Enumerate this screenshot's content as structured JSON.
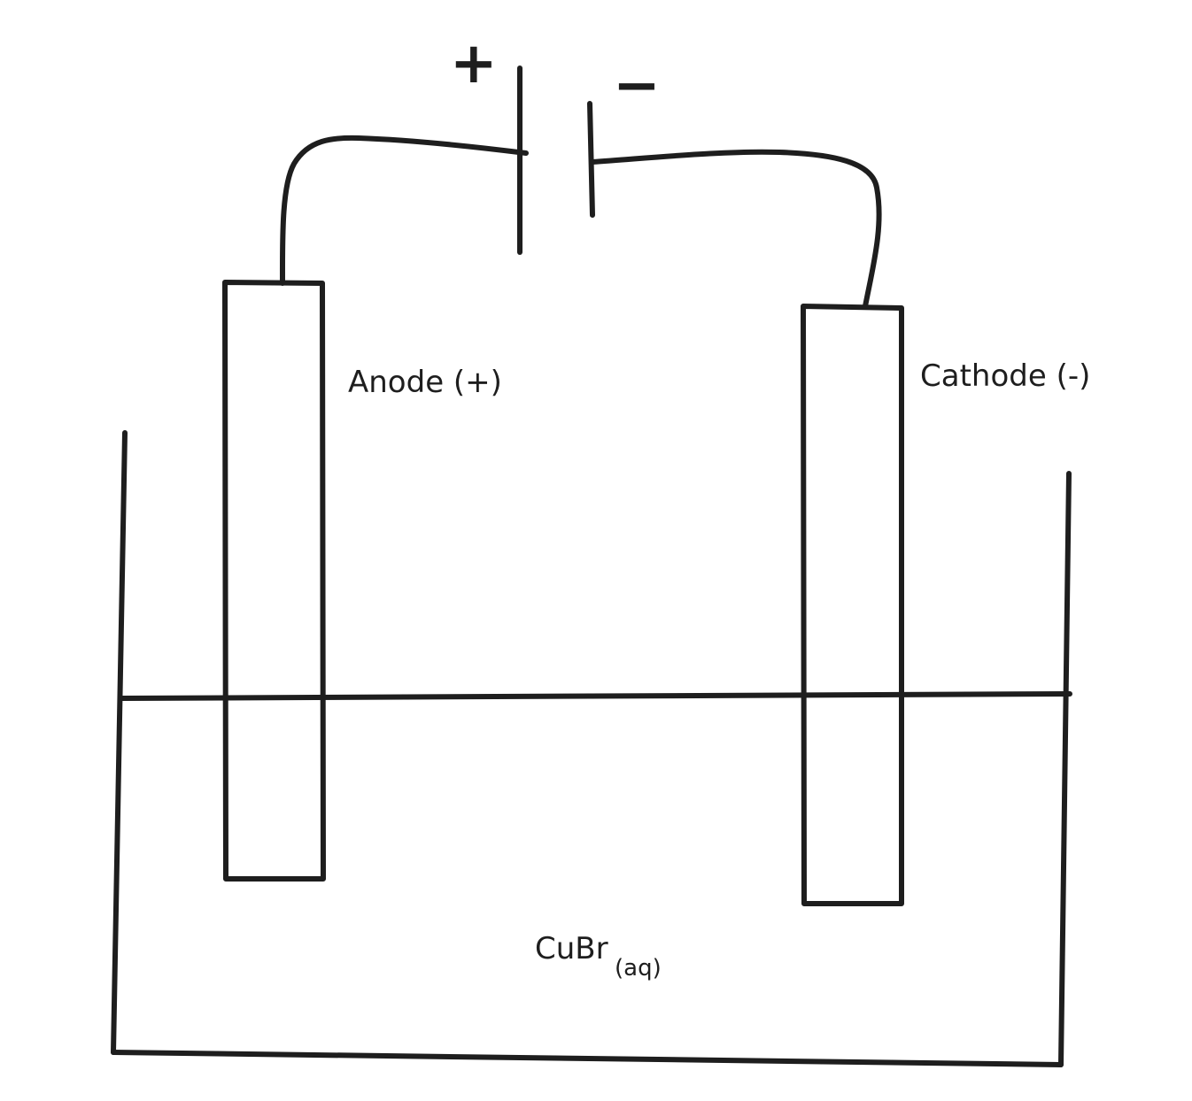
{
  "diagram": {
    "positive_sign": "+",
    "negative_sign": "−",
    "anode_label": "Anode (+)",
    "cathode_label": "Cathode (-)",
    "electrolyte": {
      "formula": "CuBr",
      "state": "(aq)"
    }
  },
  "colors": {
    "ink": "#1e1e1e",
    "background": "#ffffff"
  }
}
